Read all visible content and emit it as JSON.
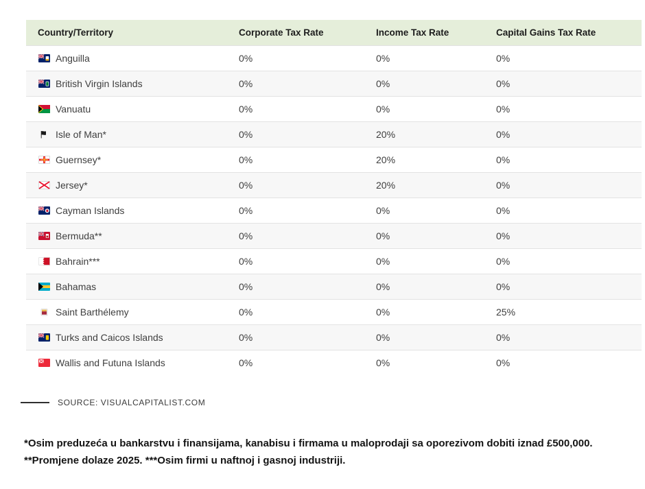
{
  "table": {
    "columns": [
      {
        "label": "Country/Territory"
      },
      {
        "label": "Corporate Tax Rate"
      },
      {
        "label": "Income Tax Rate"
      },
      {
        "label": "Capital Gains Tax Rate"
      }
    ],
    "rows": [
      {
        "country": "Anguilla",
        "flag": "flag-anguilla",
        "corporate": "0%",
        "income": "0%",
        "capital_gains": "0%"
      },
      {
        "country": "British Virgin Islands",
        "flag": "flag-british-virgin-islands",
        "corporate": "0%",
        "income": "0%",
        "capital_gains": "0%"
      },
      {
        "country": "Vanuatu",
        "flag": "flag-vanuatu",
        "corporate": "0%",
        "income": "0%",
        "capital_gains": "0%"
      },
      {
        "country": "Isle of Man*",
        "flag": "flag-isle-of-man",
        "corporate": "0%",
        "income": "20%",
        "capital_gains": "0%"
      },
      {
        "country": "Guernsey*",
        "flag": "flag-guernsey",
        "corporate": "0%",
        "income": "20%",
        "capital_gains": "0%"
      },
      {
        "country": "Jersey*",
        "flag": "flag-jersey",
        "corporate": "0%",
        "income": "20%",
        "capital_gains": "0%"
      },
      {
        "country": "Cayman Islands",
        "flag": "flag-cayman-islands",
        "corporate": "0%",
        "income": "0%",
        "capital_gains": "0%"
      },
      {
        "country": "Bermuda**",
        "flag": "flag-bermuda",
        "corporate": "0%",
        "income": "0%",
        "capital_gains": "0%"
      },
      {
        "country": "Bahrain***",
        "flag": "flag-bahrain",
        "corporate": "0%",
        "income": "0%",
        "capital_gains": "0%"
      },
      {
        "country": "Bahamas",
        "flag": "flag-bahamas",
        "corporate": "0%",
        "income": "0%",
        "capital_gains": "0%"
      },
      {
        "country": "Saint Barthélemy",
        "flag": "flag-saint-barthelemy",
        "corporate": "0%",
        "income": "0%",
        "capital_gains": "25%"
      },
      {
        "country": "Turks and Caicos Islands",
        "flag": "flag-turks-and-caicos",
        "corporate": "0%",
        "income": "0%",
        "capital_gains": "0%"
      },
      {
        "country": "Wallis and Futuna Islands",
        "flag": "flag-wallis-and-futuna",
        "corporate": "0%",
        "income": "0%",
        "capital_gains": "0%"
      }
    ]
  },
  "source": {
    "label": "SOURCE: VISUALCAPITALIST.COM"
  },
  "footnotes": {
    "line1": "*Osim preduzeća u bankarstvu i finansijama, kanabisu i firmama u maloprodaji sa oporezivom dobiti iznad £500,000.",
    "line2": "**Promjene dolaze 2025. ***Osim firmi u naftnoj i gasnoj industriji."
  },
  "colors": {
    "header_bg": "#e5eeda",
    "row_alt_bg": "#f7f7f7",
    "row_border": "#e2e2e2",
    "header_text": "#1c1c1c",
    "cell_text": "#3e3e3e"
  },
  "chart_data": {
    "type": "table",
    "title": "",
    "columns": [
      "Country/Territory",
      "Corporate Tax Rate",
      "Income Tax Rate",
      "Capital Gains Tax Rate"
    ],
    "rows": [
      [
        "Anguilla",
        "0%",
        "0%",
        "0%"
      ],
      [
        "British Virgin Islands",
        "0%",
        "0%",
        "0%"
      ],
      [
        "Vanuatu",
        "0%",
        "0%",
        "0%"
      ],
      [
        "Isle of Man*",
        "0%",
        "20%",
        "0%"
      ],
      [
        "Guernsey*",
        "0%",
        "20%",
        "0%"
      ],
      [
        "Jersey*",
        "0%",
        "20%",
        "0%"
      ],
      [
        "Cayman Islands",
        "0%",
        "0%",
        "0%"
      ],
      [
        "Bermuda**",
        "0%",
        "0%",
        "0%"
      ],
      [
        "Bahrain***",
        "0%",
        "0%",
        "0%"
      ],
      [
        "Bahamas",
        "0%",
        "0%",
        "0%"
      ],
      [
        "Saint Barthélemy",
        "0%",
        "0%",
        "25%"
      ],
      [
        "Turks and Caicos Islands",
        "0%",
        "0%",
        "0%"
      ],
      [
        "Wallis and Futuna Islands",
        "0%",
        "0%",
        "0%"
      ]
    ],
    "source": "SOURCE: VISUALCAPITALIST.COM",
    "footnotes": [
      "*Osim preduzeća u bankarstvu i finansijama, kanabisu i firmama u maloprodaji sa oporezivom dobiti iznad £500,000.",
      "**Promjene dolaze 2025. ***Osim firmi u naftnoj i gasnoj industriji."
    ],
    "layout_hints": {
      "header_background": "#e5eeda",
      "alternating_rows": true,
      "grid": "horizontal-only"
    }
  }
}
